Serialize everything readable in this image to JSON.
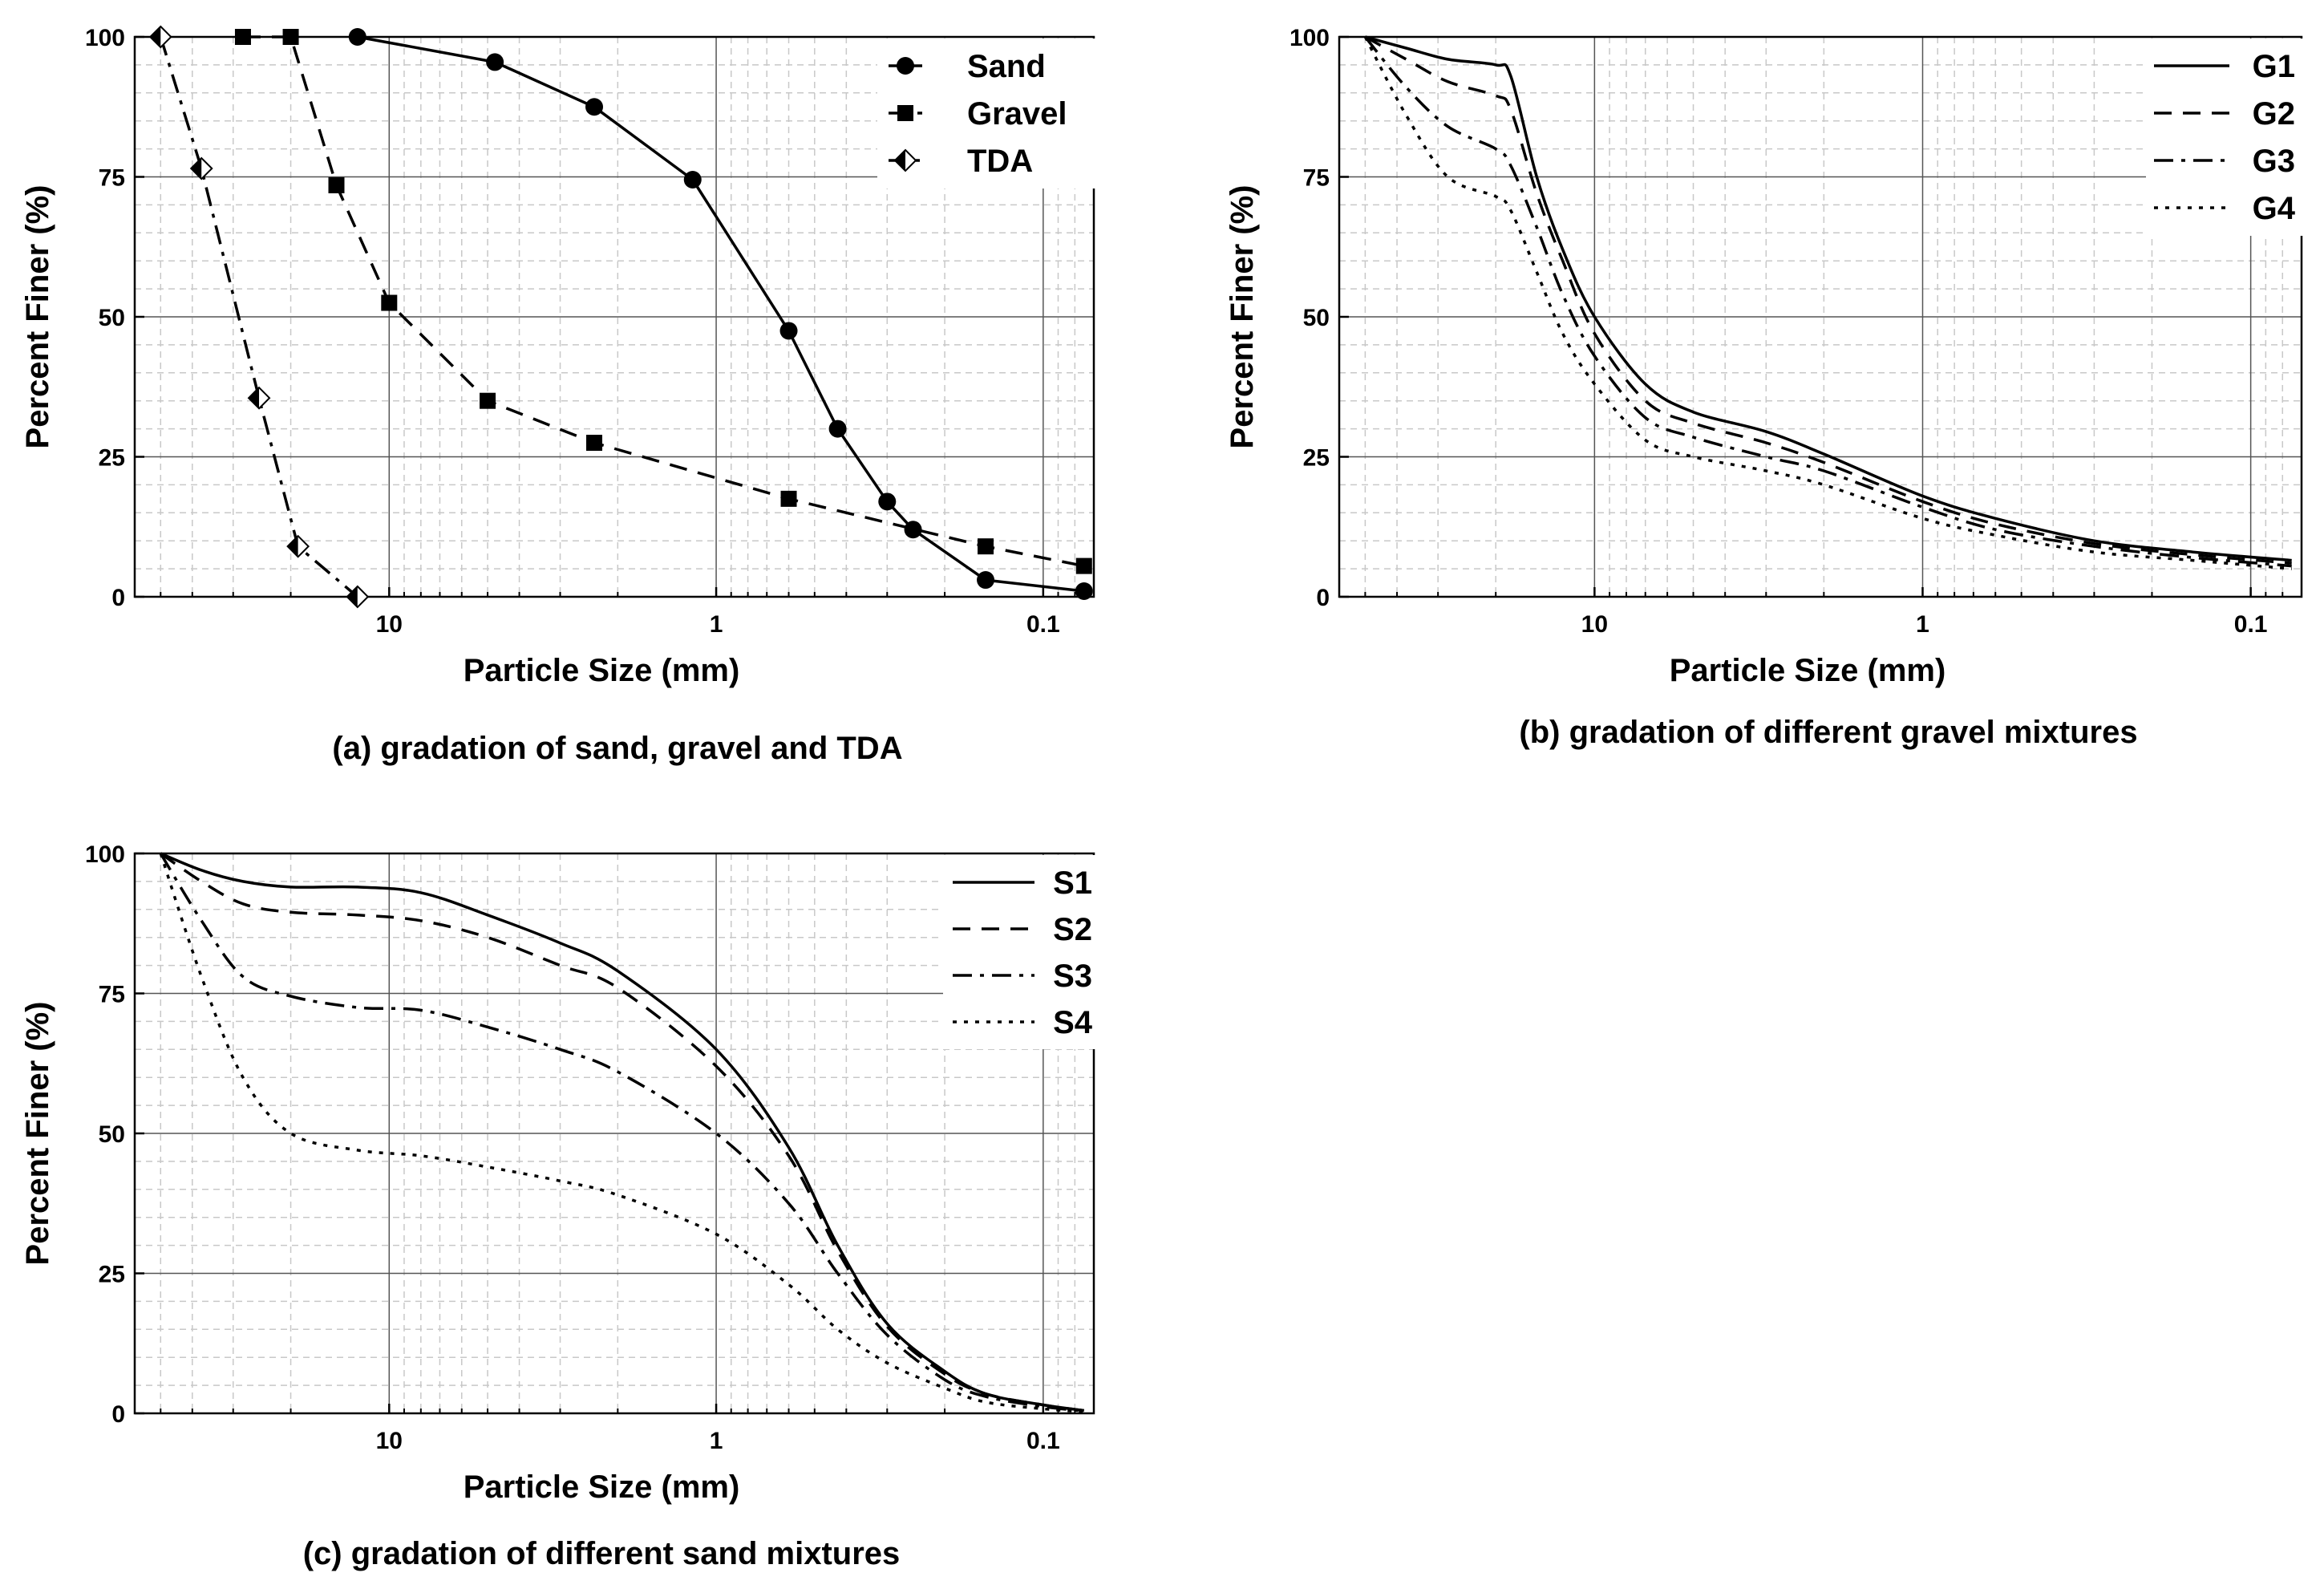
{
  "chart_data": [
    {
      "type": "line",
      "caption": "(a) gradation of sand, gravel and TDA",
      "xlabel": "Particle Size (mm)",
      "ylabel": "Percent Finer (%)",
      "xscale": "log",
      "x_reversed": true,
      "xlim": [
        60,
        0.07
      ],
      "ylim": [
        0,
        100
      ],
      "x_tick_labels": [
        "10",
        "1",
        "0.1"
      ],
      "y_tick_labels": [
        "0",
        "25",
        "50",
        "75",
        "100"
      ],
      "grid": true,
      "legend_position": "top-right",
      "series": [
        {
          "name": "Sand",
          "line_style": "solid",
          "marker": "circle-filled",
          "x": [
            12.5,
            4.75,
            2.36,
            1.18,
            0.6,
            0.425,
            0.3,
            0.25,
            0.15,
            0.075
          ],
          "y": [
            100,
            95.5,
            87.5,
            74.5,
            47.5,
            30,
            17,
            12,
            3,
            1
          ]
        },
        {
          "name": "Gravel",
          "line_style": "dashed",
          "marker": "square-filled",
          "x": [
            28,
            20,
            14.5,
            10,
            5,
            2.36,
            0.6,
            0.15,
            0.075
          ],
          "y": [
            100,
            100,
            73.5,
            52.5,
            35,
            27.5,
            17.5,
            9,
            5.5
          ]
        },
        {
          "name": "TDA",
          "line_style": "dash-dot",
          "marker": "diamond-half",
          "x": [
            50,
            37.5,
            25,
            19,
            12.5
          ],
          "y": [
            100,
            76.5,
            35.5,
            9,
            0
          ]
        }
      ]
    },
    {
      "type": "line",
      "caption": "(b) gradation of different gravel mixtures",
      "xlabel": "Particle Size (mm)",
      "ylabel": "Percent Finer (%)",
      "xscale": "log",
      "x_reversed": true,
      "xlim": [
        60,
        0.07
      ],
      "ylim": [
        0,
        100
      ],
      "x_tick_labels": [
        "10",
        "1",
        "0.1"
      ],
      "y_tick_labels": [
        "0",
        "25",
        "50",
        "75",
        "100"
      ],
      "grid": true,
      "legend_position": "top-right",
      "series": [
        {
          "name": "G1",
          "line_style": "solid",
          "x": [
            50,
            37.5,
            28,
            20,
            18,
            15,
            12.5,
            10,
            7,
            5,
            3,
            2,
            1,
            0.6,
            0.3,
            0.15,
            0.075
          ],
          "y": [
            100,
            98,
            96,
            95,
            93,
            75,
            62,
            50,
            38,
            33,
            29.5,
            25.5,
            18,
            14,
            10,
            8,
            6.5
          ]
        },
        {
          "name": "G2",
          "line_style": "dashed",
          "x": [
            50,
            37.5,
            28,
            20,
            18,
            15,
            12.5,
            10,
            7,
            5,
            3,
            2,
            1,
            0.6,
            0.3,
            0.15,
            0.075
          ],
          "y": [
            100,
            96,
            92,
            89.5,
            87,
            72,
            60,
            47,
            35,
            31,
            27.5,
            24,
            17,
            13,
            9.5,
            7.5,
            6
          ]
        },
        {
          "name": "G3",
          "line_style": "dash-dot",
          "x": [
            50,
            37.5,
            28,
            20,
            18,
            15,
            12.5,
            10,
            7,
            5,
            3,
            2,
            1,
            0.6,
            0.3,
            0.15,
            0.075
          ],
          "y": [
            100,
            91,
            84,
            80,
            77,
            66,
            54,
            43,
            32,
            28.5,
            25,
            22.5,
            16,
            12,
            9,
            7,
            5.5
          ]
        },
        {
          "name": "G4",
          "line_style": "dotted",
          "x": [
            50,
            37.5,
            28,
            20,
            18,
            15,
            12.5,
            10,
            7,
            5,
            3,
            2,
            1,
            0.6,
            0.3,
            0.15,
            0.075
          ],
          "y": [
            100,
            86,
            75,
            71.5,
            69,
            58,
            47,
            38,
            28,
            25,
            22.5,
            20,
            14,
            11,
            8,
            6.5,
            5
          ]
        }
      ]
    },
    {
      "type": "line",
      "caption": "(c) gradation of different sand mixtures",
      "xlabel": "Particle Size (mm)",
      "ylabel": "Percent Finer (%)",
      "xscale": "log",
      "x_reversed": true,
      "xlim": [
        60,
        0.07
      ],
      "ylim": [
        0,
        100
      ],
      "x_tick_labels": [
        "10",
        "1",
        "0.1"
      ],
      "y_tick_labels": [
        "0",
        "25",
        "50",
        "75",
        "100"
      ],
      "grid": true,
      "legend_position": "top-right",
      "series": [
        {
          "name": "S1",
          "line_style": "solid",
          "x": [
            50,
            37.5,
            28,
            20,
            12.5,
            8,
            5,
            3,
            2,
            1,
            0.6,
            0.425,
            0.3,
            0.2,
            0.15,
            0.1,
            0.075
          ],
          "y": [
            100,
            97,
            95,
            94,
            94,
            93,
            89,
            84,
            79,
            65,
            47.5,
            30,
            16,
            7.5,
            3.5,
            1.5,
            0.5
          ]
        },
        {
          "name": "S2",
          "line_style": "dashed",
          "x": [
            50,
            37.5,
            28,
            20,
            12.5,
            8,
            5,
            3,
            2,
            1,
            0.6,
            0.425,
            0.3,
            0.2,
            0.15,
            0.1,
            0.075
          ],
          "y": [
            100,
            95,
            91,
            89.5,
            89,
            88,
            85,
            80,
            76,
            62,
            46,
            29,
            15.5,
            7,
            3.5,
            1.5,
            0.5
          ]
        },
        {
          "name": "S3",
          "line_style": "dash-dot",
          "x": [
            50,
            37.5,
            28,
            20,
            12.5,
            8,
            5,
            3,
            2,
            1,
            0.6,
            0.425,
            0.3,
            0.2,
            0.15,
            0.1,
            0.075
          ],
          "y": [
            100,
            88,
            78,
            74.5,
            72.5,
            72,
            69,
            65,
            61,
            50,
            37.5,
            25,
            14,
            6,
            3,
            1.2,
            0.4
          ]
        },
        {
          "name": "S4",
          "line_style": "dotted",
          "x": [
            50,
            37.5,
            28,
            20,
            12.5,
            8,
            5,
            3,
            2,
            1,
            0.6,
            0.425,
            0.3,
            0.2,
            0.15,
            0.1,
            0.075
          ],
          "y": [
            100,
            78,
            60,
            50,
            47,
            46,
            44,
            41.5,
            39,
            32,
            23,
            15,
            9,
            4.5,
            2,
            0.8,
            0.3
          ]
        }
      ]
    }
  ]
}
